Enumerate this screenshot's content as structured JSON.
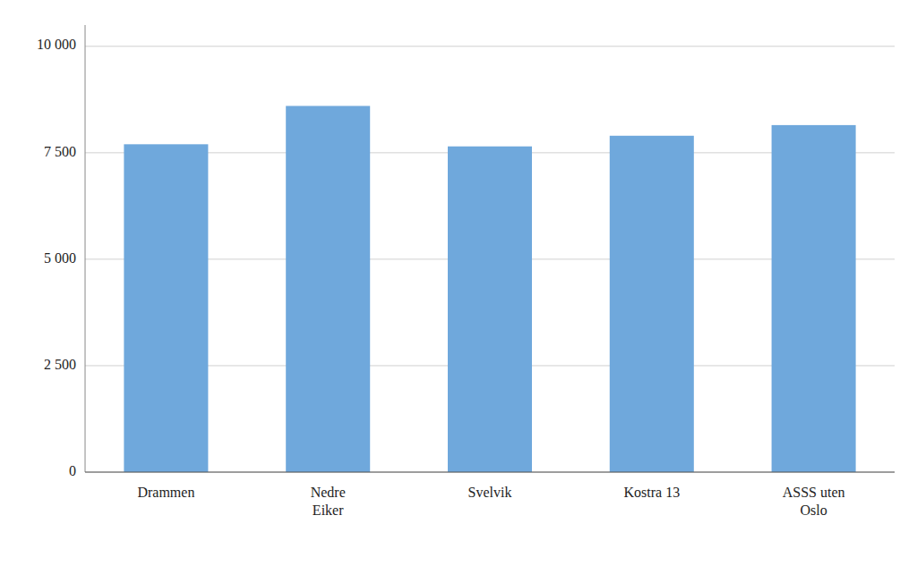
{
  "chart_data": {
    "type": "bar",
    "categories": [
      "Drammen",
      "Nedre\nEiker",
      "Svelvik",
      "Kostra 13",
      "ASSS uten\nOslo"
    ],
    "values": [
      7700,
      8600,
      7650,
      7900,
      8150
    ],
    "color": "#6fa8dc",
    "ylim": [
      0,
      10500
    ],
    "yticks": [
      0,
      {
        "value": 2500,
        "label": "2 500"
      },
      {
        "value": 5000,
        "label": "5 000"
      },
      {
        "value": 7500,
        "label": "7 500"
      },
      {
        "value": 10000,
        "label": "10 000"
      }
    ],
    "grid": true
  }
}
